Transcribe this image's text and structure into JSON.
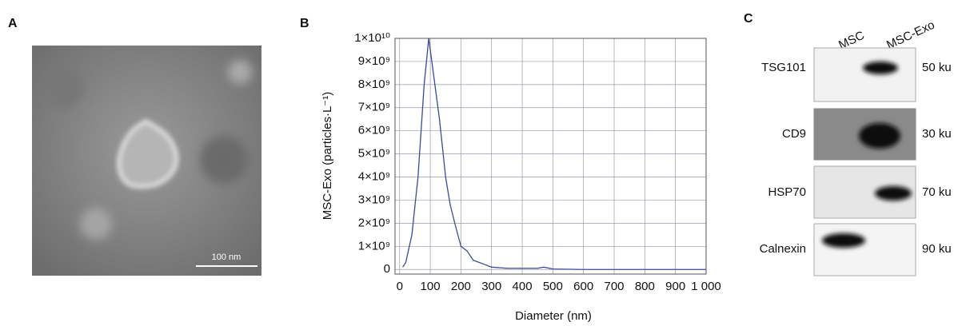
{
  "panel_a": {
    "label": "A",
    "scale_bar": "100 nm"
  },
  "chart_data": {
    "type": "line",
    "label": "B",
    "x_label": "Diameter (nm)",
    "y_label": "MSC-Exo (particles·L⁻¹)",
    "x": [
      10,
      20,
      40,
      60,
      80,
      95,
      110,
      130,
      150,
      165,
      180,
      200,
      220,
      240,
      260,
      280,
      300,
      350,
      400,
      450,
      470,
      500,
      600,
      700,
      800,
      1000
    ],
    "values": [
      100000000,
      300000000,
      1500000000,
      4000000000,
      8000000000,
      10000000000,
      8500000000,
      6500000000,
      4000000000,
      2800000000,
      2000000000,
      1000000000,
      800000000,
      400000000,
      300000000,
      200000000,
      100000000,
      50000000,
      50000000,
      50000000,
      100000000,
      20000000,
      0,
      0,
      0,
      0
    ],
    "color": "#3b4a9a",
    "xlim": [
      -15,
      1000
    ],
    "ylim": [
      -200000000,
      10000000000
    ],
    "xticks": [
      0,
      100,
      200,
      300,
      400,
      500,
      600,
      700,
      800,
      900,
      {
        "value": 1000,
        "label": "1 000"
      }
    ],
    "yticks": [
      0,
      {
        "value": 1000000000,
        "label": "1×10⁹"
      },
      {
        "value": 2000000000,
        "label": "2×10⁹"
      },
      {
        "value": 3000000000,
        "label": "3×10⁹"
      },
      {
        "value": 4000000000,
        "label": "4×10⁹"
      },
      {
        "value": 5000000000,
        "label": "5×10⁹"
      },
      {
        "value": 6000000000,
        "label": "6×10⁹"
      },
      {
        "value": 7000000000,
        "label": "7×10⁹"
      },
      {
        "value": 8000000000,
        "label": "8×10⁹"
      },
      {
        "value": 9000000000,
        "label": "9×10⁹"
      },
      {
        "value": 10000000000,
        "label": "1×10¹⁰"
      }
    ],
    "grid": true
  },
  "panel_c": {
    "label": "C",
    "lanes": [
      "MSC",
      "MSC-Exo"
    ],
    "rows": [
      {
        "protein": "TSG101",
        "size": "50 ku"
      },
      {
        "protein": "CD9",
        "size": "30 ku"
      },
      {
        "protein": "HSP70",
        "size": "70 ku"
      },
      {
        "protein": "Calnexin",
        "size": "90 ku"
      }
    ]
  }
}
